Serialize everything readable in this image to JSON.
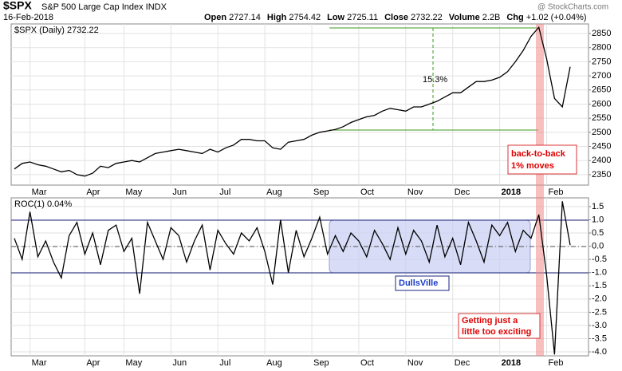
{
  "header": {
    "symbol": "$SPX",
    "name": "S&P 500 Large Cap Index INDX",
    "date": "16-Feb-2018",
    "watermark": "@ StockCharts.com",
    "quote": [
      "Open",
      "2727.14",
      "High",
      "2754.42",
      "Low",
      "2725.11",
      "Close",
      "2732.22",
      "Volume",
      "2.2B",
      "Chg",
      "+1.02 (+0.04%)"
    ]
  },
  "chart_data": [
    {
      "type": "line",
      "legend": "$SPX (Daily) 2732.22",
      "color": "#000000",
      "grid": true,
      "annotations": {
        "gain": "15.3%",
        "moves": [
          "back-to-back",
          "1% moves"
        ]
      },
      "categories": [
        null,
        null,
        "Mar",
        null,
        null,
        null,
        null,
        null,
        null,
        "Apr",
        null,
        null,
        null,
        null,
        "May",
        null,
        null,
        null,
        null,
        null,
        "Jun",
        null,
        null,
        null,
        null,
        null,
        "Jul",
        null,
        null,
        null,
        null,
        null,
        "Aug",
        null,
        null,
        null,
        null,
        null,
        "Sep",
        null,
        null,
        null,
        null,
        null,
        "Oct",
        null,
        null,
        null,
        null,
        null,
        "Nov",
        null,
        null,
        null,
        null,
        null,
        "Dec",
        null,
        null,
        null,
        null,
        null,
        "2018",
        null,
        null,
        null,
        null,
        null,
        "Feb",
        null,
        null,
        null
      ],
      "values": [
        2370,
        2390,
        2395,
        2385,
        2380,
        2370,
        2360,
        2365,
        2350,
        2345,
        2355,
        2380,
        2375,
        2390,
        2395,
        2400,
        2395,
        2410,
        2425,
        2430,
        2435,
        2440,
        2435,
        2430,
        2425,
        2440,
        2430,
        2445,
        2455,
        2475,
        2475,
        2470,
        2470,
        2445,
        2440,
        2465,
        2470,
        2475,
        2490,
        2500,
        2505,
        2510,
        2520,
        2535,
        2545,
        2555,
        2560,
        2575,
        2585,
        2580,
        2575,
        2590,
        2590,
        2600,
        2610,
        2625,
        2640,
        2640,
        2660,
        2680,
        2680,
        2685,
        2695,
        2715,
        2750,
        2790,
        2840,
        2872,
        2760,
        2620,
        2590,
        2732
      ],
      "ylim": [
        2313,
        2884
      ],
      "yticks": [
        2350,
        2400,
        2450,
        2500,
        2550,
        2600,
        2650,
        2700,
        2750,
        2800,
        2850
      ]
    },
    {
      "type": "line",
      "legend": "ROC(1) 0.04%",
      "color": "#000000",
      "grid": true,
      "annotations": {
        "calm": "DullsVille",
        "exciting": [
          "Getting just a",
          "little too exciting"
        ]
      },
      "categories": [
        null,
        null,
        "Mar",
        null,
        null,
        null,
        null,
        null,
        null,
        "Apr",
        null,
        null,
        null,
        null,
        "May",
        null,
        null,
        null,
        null,
        null,
        "Jun",
        null,
        null,
        null,
        null,
        null,
        "Jul",
        null,
        null,
        null,
        null,
        null,
        "Aug",
        null,
        null,
        null,
        null,
        null,
        "Sep",
        null,
        null,
        null,
        null,
        null,
        "Oct",
        null,
        null,
        null,
        null,
        null,
        "Nov",
        null,
        null,
        null,
        null,
        null,
        "Dec",
        null,
        null,
        null,
        null,
        null,
        "2018",
        null,
        null,
        null,
        null,
        null,
        "Feb",
        null,
        null,
        null
      ],
      "values": [
        0.3,
        -0.5,
        1.3,
        -0.4,
        0.2,
        -0.6,
        -1.2,
        0.4,
        0.9,
        -0.3,
        0.5,
        -0.7,
        0.6,
        0.8,
        -0.2,
        0.3,
        -1.8,
        0.9,
        0.2,
        -0.5,
        0.7,
        0.4,
        -0.6,
        0.2,
        0.8,
        -0.9,
        0.6,
        0.1,
        -0.3,
        0.5,
        0.2,
        0.7,
        -0.2,
        -1.45,
        1.0,
        -1.0,
        0.6,
        -0.4,
        0.3,
        1.1,
        -0.3,
        0.4,
        -0.2,
        0.5,
        0.2,
        -0.4,
        0.6,
        0.1,
        -0.5,
        0.7,
        -0.3,
        0.6,
        0.2,
        -0.6,
        0.8,
        -0.4,
        0.3,
        -0.7,
        0.9,
        0.2,
        -0.6,
        0.8,
        0.4,
        0.9,
        -0.2,
        0.6,
        0.3,
        1.2,
        -1.1,
        -4.1,
        1.7,
        0.04
      ],
      "ylim": [
        -4.15,
        1.83
      ],
      "yticks": [
        1.5,
        {
          "value": 1,
          "label": "1.0"
        },
        0.5,
        {
          "value": 0,
          "label": "0.0"
        },
        -0.5,
        {
          "value": -1,
          "label": "-1.0"
        },
        -1.5,
        {
          "value": -2,
          "label": "-2.0"
        },
        -2.5,
        {
          "value": -3,
          "label": "-3.0"
        },
        -3.5,
        {
          "value": -4,
          "label": "-4.0"
        }
      ]
    }
  ]
}
